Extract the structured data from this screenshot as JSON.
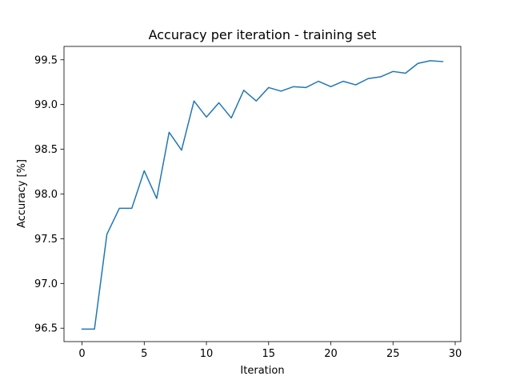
{
  "chart_data": {
    "type": "line",
    "title": "Accuracy per iteration - training set",
    "xlabel": "Iteration",
    "ylabel": "Accuracy [%]",
    "xlim": [
      -1.45,
      30.45
    ],
    "ylim": [
      96.35,
      99.65
    ],
    "xticks": [
      0,
      5,
      10,
      15,
      20,
      25,
      30
    ],
    "yticks": [
      96.5,
      97.0,
      97.5,
      98.0,
      98.5,
      99.0,
      99.5
    ],
    "ytick_labels": [
      "96.5",
      "97.0",
      "97.5",
      "98.0",
      "98.5",
      "99.0",
      "99.5"
    ],
    "grid": false,
    "legend": null,
    "series": [
      {
        "color": "#1f77b4",
        "x": [
          0,
          1,
          2,
          3,
          4,
          5,
          6,
          7,
          8,
          9,
          10,
          11,
          12,
          13,
          14,
          15,
          16,
          17,
          18,
          19,
          20,
          21,
          22,
          23,
          24,
          25,
          26,
          27,
          28,
          29
        ],
        "y": [
          96.49,
          96.49,
          97.55,
          97.84,
          97.84,
          98.26,
          97.95,
          98.69,
          98.49,
          99.04,
          98.86,
          99.02,
          98.85,
          99.16,
          99.04,
          99.19,
          99.15,
          99.2,
          99.19,
          99.26,
          99.2,
          99.26,
          99.22,
          99.29,
          99.31,
          99.37,
          99.35,
          99.46,
          99.49,
          99.48
        ]
      }
    ]
  }
}
